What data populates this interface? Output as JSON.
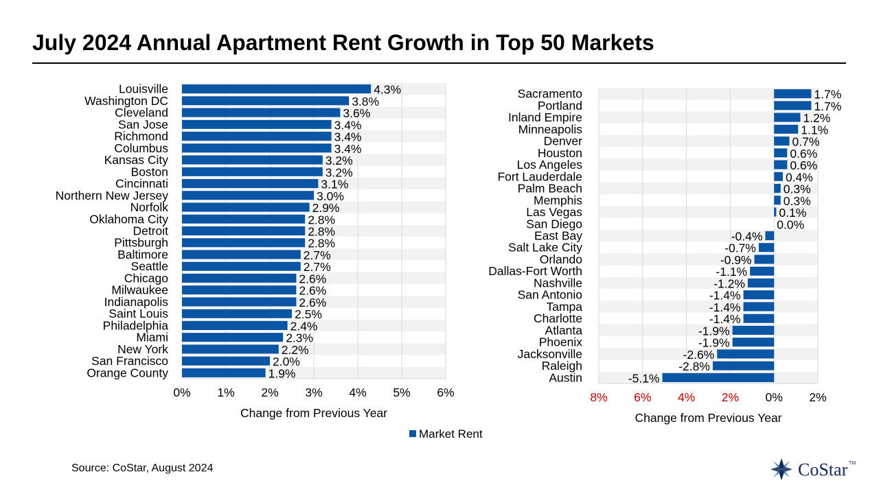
{
  "title": "July 2024 Annual Apartment Rent Growth in Top 50 Markets",
  "source": "Source: CoStar, August 2024",
  "logo": {
    "text": "CoStar",
    "tm": "TM"
  },
  "legend": {
    "label": "Market Rent"
  },
  "colors": {
    "bar": "#0a56a5",
    "negative_tick": "#c00000",
    "stripe": "#f2f2f2",
    "grid": "#d9d9d9",
    "logo": "#0f2a5c"
  },
  "chart_data": [
    {
      "type": "bar",
      "orientation": "horizontal",
      "title": "",
      "xlabel": "Change from Previous Year",
      "xlim": [
        0,
        6
      ],
      "ticks": [
        "0%",
        "1%",
        "2%",
        "3%",
        "4%",
        "5%",
        "6%"
      ],
      "categories": [
        "Louisville",
        "Washington DC",
        "Cleveland",
        "San Jose",
        "Richmond",
        "Columbus",
        "Kansas City",
        "Boston",
        "Cincinnati",
        "Northern New Jersey",
        "Norfolk",
        "Oklahoma City",
        "Detroit",
        "Pittsburgh",
        "Baltimore",
        "Seattle",
        "Chicago",
        "Milwaukee",
        "Indianapolis",
        "Saint Louis",
        "Philadelphia",
        "Miami",
        "New York",
        "San Francisco",
        "Orange County"
      ],
      "values": [
        4.3,
        3.8,
        3.6,
        3.4,
        3.4,
        3.4,
        3.2,
        3.2,
        3.1,
        3.0,
        2.9,
        2.8,
        2.8,
        2.8,
        2.7,
        2.7,
        2.6,
        2.6,
        2.6,
        2.5,
        2.4,
        2.3,
        2.2,
        2.0,
        1.9
      ],
      "labels": [
        "4.3%",
        "3.8%",
        "3.6%",
        "3.4%",
        "3.4%",
        "3.4%",
        "3.2%",
        "3.2%",
        "3.1%",
        "3.0%",
        "2.9%",
        "2.8%",
        "2.8%",
        "2.8%",
        "2.7%",
        "2.7%",
        "2.6%",
        "2.6%",
        "2.6%",
        "2.5%",
        "2.4%",
        "2.3%",
        "2.2%",
        "2.0%",
        "1.9%"
      ]
    },
    {
      "type": "bar",
      "orientation": "horizontal",
      "title": "",
      "xlabel": "Change from Previous Year",
      "xlim": [
        -8,
        2
      ],
      "ticks": [
        "8%",
        "6%",
        "4%",
        "2%",
        "0%",
        "2%"
      ],
      "categories": [
        "Sacramento",
        "Portland",
        "Inland Empire",
        "Minneapolis",
        "Denver",
        "Houston",
        "Los Angeles",
        "Fort Lauderdale",
        "Palm Beach",
        "Memphis",
        "Las Vegas",
        "San Diego",
        "East Bay",
        "Salt Lake City",
        "Orlando",
        "Dallas-Fort Worth",
        "Nashville",
        "San Antonio",
        "Tampa",
        "Charlotte",
        "Atlanta",
        "Phoenix",
        "Jacksonville",
        "Raleigh",
        "Austin"
      ],
      "values": [
        1.7,
        1.7,
        1.2,
        1.1,
        0.7,
        0.6,
        0.6,
        0.4,
        0.3,
        0.3,
        0.1,
        0.0,
        -0.4,
        -0.7,
        -0.9,
        -1.1,
        -1.2,
        -1.4,
        -1.4,
        -1.4,
        -1.9,
        -1.9,
        -2.6,
        -2.8,
        -5.1
      ],
      "labels": [
        "1.7%",
        "1.7%",
        "1.2%",
        "1.1%",
        "0.7%",
        "0.6%",
        "0.6%",
        "0.4%",
        "0.3%",
        "0.3%",
        "0.1%",
        "0.0%",
        "-0.4%",
        "-0.7%",
        "-0.9%",
        "-1.1%",
        "-1.2%",
        "-1.4%",
        "-1.4%",
        "-1.4%",
        "-1.9%",
        "-1.9%",
        "-2.6%",
        "-2.8%",
        "-5.1%"
      ]
    }
  ]
}
